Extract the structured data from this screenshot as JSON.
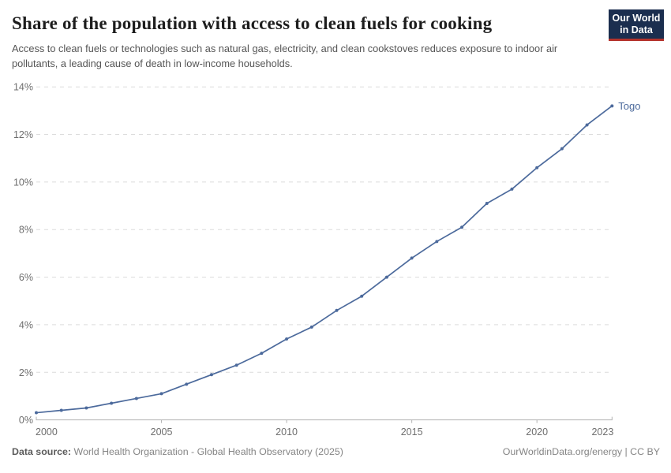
{
  "header": {
    "title": "Share of the population with access to clean fuels for cooking",
    "subtitle": "Access to clean fuels or technologies such as natural gas, electricity, and clean cookstoves reduces exposure to indoor air pollutants, a leading cause of death in low-income households.",
    "logo": {
      "line1": "Our World",
      "line2": "in Data"
    }
  },
  "footer": {
    "datasource_label": "Data source:",
    "datasource_value": " World Health Organization - Global Health Observatory (2025)",
    "credit": "OurWorldinData.org/energy | CC BY"
  },
  "colors": {
    "accent_blue": "#4c6a9c",
    "logo_navy": "#1b2e4f",
    "logo_red": "#b5332c",
    "gridline": "#dcdcdc",
    "axis": "#b3b3b3",
    "tick_label": "#6e6e6e"
  },
  "chart_data": {
    "type": "line",
    "title": "Share of the population with access to clean fuels for cooking",
    "xlabel": "",
    "ylabel": "",
    "xlim": [
      2000,
      2023
    ],
    "ylim": [
      0,
      14
    ],
    "grid": "horizontal-dashed",
    "legend_position": "end-of-line-label",
    "xticks": [
      2000,
      2005,
      2010,
      2015,
      2020,
      2023
    ],
    "yticks": [
      0,
      2,
      4,
      6,
      8,
      10,
      12,
      14
    ],
    "ytick_format": "{v}%",
    "series": [
      {
        "name": "Togo",
        "color": "#4c6a9c",
        "x": [
          2000,
          2001,
          2002,
          2003,
          2004,
          2005,
          2006,
          2007,
          2008,
          2009,
          2010,
          2011,
          2012,
          2013,
          2014,
          2015,
          2016,
          2017,
          2018,
          2019,
          2020,
          2021,
          2022,
          2023
        ],
        "values": [
          0.3,
          0.4,
          0.5,
          0.7,
          0.9,
          1.1,
          1.5,
          1.9,
          2.3,
          2.8,
          3.4,
          3.9,
          4.6,
          5.2,
          6.0,
          6.8,
          7.5,
          8.1,
          9.1,
          9.7,
          10.6,
          11.4,
          12.4,
          13.2
        ]
      }
    ]
  }
}
